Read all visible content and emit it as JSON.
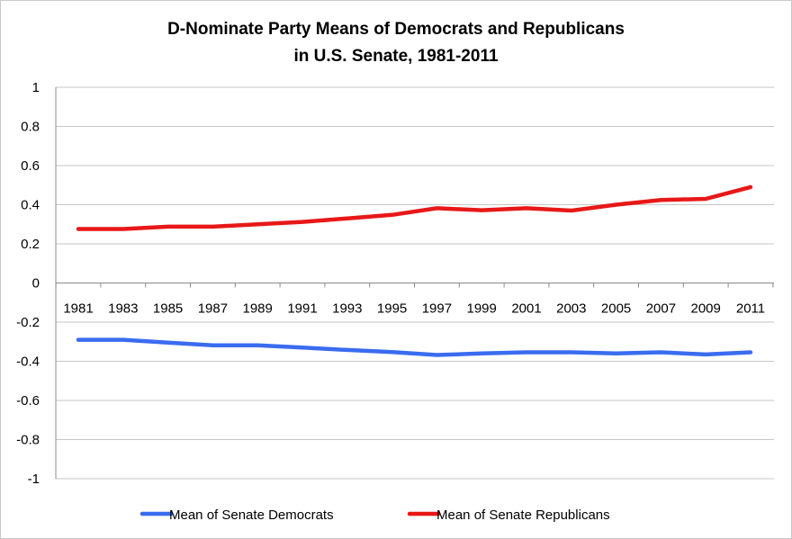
{
  "chart_data": {
    "type": "line",
    "title_line1": "D-Nominate Party Means of Democrats and Republicans",
    "title_line2": "in U.S. Senate, 1981-2011",
    "xlabel": "",
    "ylabel": "",
    "categories": [
      "1981",
      "1983",
      "1985",
      "1987",
      "1989",
      "1991",
      "1993",
      "1995",
      "1997",
      "1999",
      "2001",
      "2003",
      "2005",
      "2007",
      "2009",
      "2011"
    ],
    "ylim": [
      -1,
      1
    ],
    "yticks": [
      "1",
      "0.8",
      "0.6",
      "0.4",
      "0.2",
      "0",
      "-0.2",
      "-0.4",
      "-0.6",
      "-0.8",
      "-1"
    ],
    "grid": true,
    "legend_position": "bottom",
    "series": [
      {
        "name": "Mean of Senate Democrats",
        "color": "#3a6cf0",
        "values": [
          -0.29,
          -0.29,
          -0.305,
          -0.318,
          -0.318,
          -0.33,
          -0.342,
          -0.353,
          -0.368,
          -0.36,
          -0.354,
          -0.354,
          -0.36,
          -0.354,
          -0.365,
          -0.354
        ]
      },
      {
        "name": "Mean of Senate Republicans",
        "color": "#e81818",
        "values": [
          0.276,
          0.276,
          0.288,
          0.288,
          0.3,
          0.312,
          0.33,
          0.348,
          0.382,
          0.372,
          0.382,
          0.37,
          0.4,
          0.424,
          0.43,
          0.49
        ]
      }
    ]
  }
}
